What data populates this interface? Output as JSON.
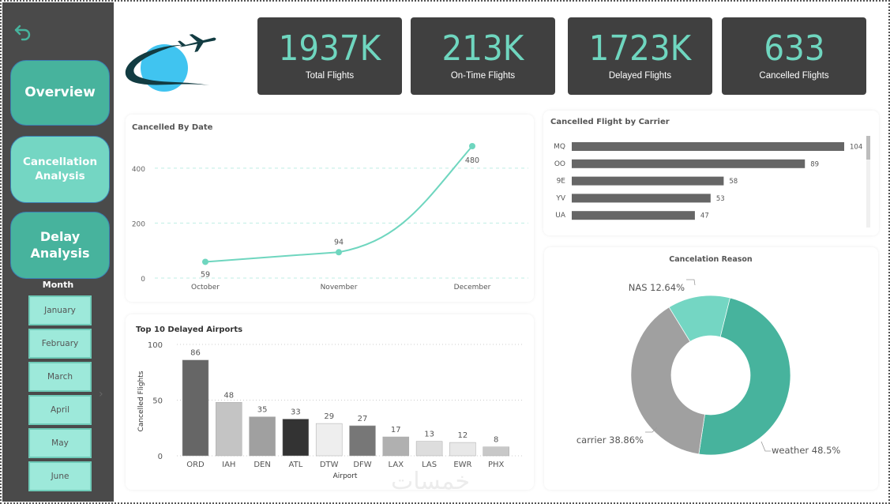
{
  "sidebar": {
    "back_icon": "undo-arrow-icon",
    "nav": [
      {
        "label": "Overview"
      },
      {
        "label": "Cancellation Analysis"
      },
      {
        "label": "Delay Analysis"
      }
    ],
    "month_title": "Month",
    "months": [
      "January",
      "February",
      "March",
      "April",
      "May",
      "June"
    ],
    "chevron_icon": "chevron-right-icon"
  },
  "logo": {
    "icon": "airplane-globe-logo"
  },
  "kpis": [
    {
      "value": "1937K",
      "label": "Total Flights"
    },
    {
      "value": "213K",
      "label": "On-Time Flights"
    },
    {
      "value": "1723K",
      "label": "Delayed Flights"
    },
    {
      "value": "633",
      "label": "Cancelled Flights"
    }
  ],
  "colors": {
    "accent": "#6fd6bf",
    "teal_dark": "#47b39d",
    "teal_light": "#74d6c3",
    "kpi_bg": "#404040",
    "sidebar_bg": "#4a4a4a",
    "bar_gray": "#666666",
    "donut_gray": "#a0a0a0"
  },
  "watermark": "خمسات",
  "chart_data": [
    {
      "type": "line",
      "title": "Cancelled By Date",
      "categories": [
        "October",
        "November",
        "December"
      ],
      "values": [
        59,
        94,
        480
      ],
      "ylim": [
        0,
        480
      ],
      "yticks": [
        0,
        200,
        400
      ],
      "xlabel": "",
      "ylabel": "",
      "grid": true
    },
    {
      "type": "bar",
      "orientation": "horizontal",
      "title": "Cancelled Flight by Carrier",
      "categories": [
        "MQ",
        "OO",
        "9E",
        "YV",
        "UA"
      ],
      "values": [
        104,
        89,
        58,
        53,
        47
      ],
      "xlim": [
        0,
        104
      ],
      "scrollable": true
    },
    {
      "type": "bar",
      "title": "Top 10 Delayed Airports",
      "categories": [
        "ORD",
        "IAH",
        "DEN",
        "ATL",
        "DTW",
        "DFW",
        "LAX",
        "LAS",
        "EWR",
        "PHX"
      ],
      "values": [
        86,
        48,
        35,
        33,
        29,
        27,
        17,
        13,
        12,
        8
      ],
      "bar_colors": [
        "#666666",
        "#c4c4c4",
        "#a0a0a0",
        "#333333",
        "#eeeeee",
        "#777777",
        "#b0b0b0",
        "#dddddd",
        "#e8e8e8",
        "#c8c8c8"
      ],
      "xlabel": "Airport",
      "ylabel": "Cancelled Flights",
      "ylim": [
        0,
        100
      ],
      "yticks": [
        0,
        50,
        100
      ],
      "grid": true
    },
    {
      "type": "pie",
      "donut": true,
      "title": "Cancelation Reason",
      "labels": [
        "weather",
        "carrier",
        "NAS"
      ],
      "values": [
        48.5,
        38.86,
        12.64
      ],
      "display": [
        "weather 48.5%",
        "carrier 38.86%",
        "NAS 12.64%"
      ],
      "colors": [
        "#47b39d",
        "#a0a0a0",
        "#74d6c3"
      ]
    }
  ]
}
